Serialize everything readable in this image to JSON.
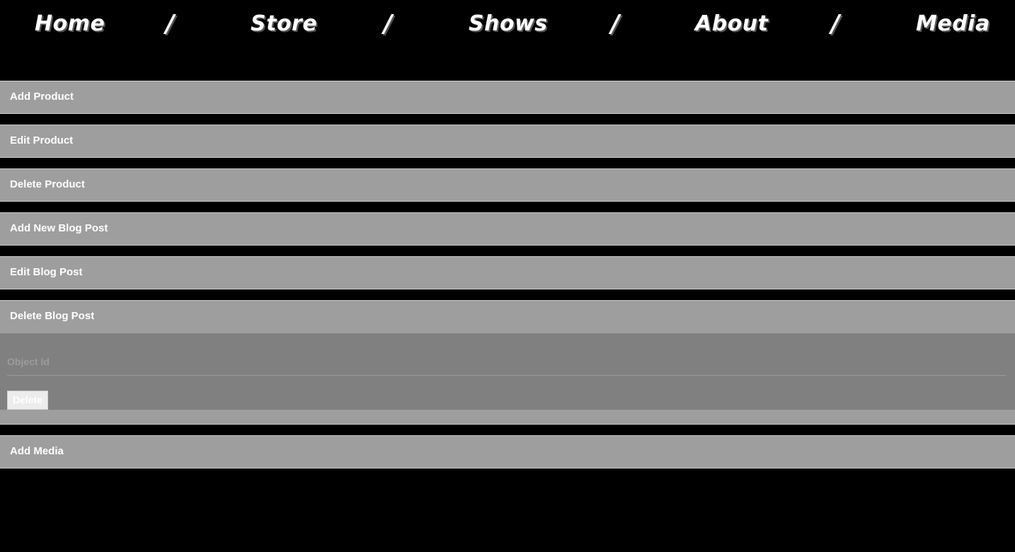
{
  "nav": {
    "links": [
      "Home",
      "Store",
      "Shows",
      "About",
      "Media"
    ],
    "separator": "/"
  },
  "panels": [
    {
      "label": "Add Product"
    },
    {
      "label": "Edit Product"
    },
    {
      "label": "Delete Product"
    },
    {
      "label": "Add New Blog Post"
    },
    {
      "label": "Edit Blog Post"
    },
    {
      "label": "Delete Blog Post"
    },
    {
      "label": "Add Media"
    }
  ],
  "delete_blog_form": {
    "object_id_placeholder": "Object Id",
    "object_id_value": "",
    "delete_label": "Delete"
  },
  "colors": {
    "page_background": "#000000",
    "panel_background": "#9e9e9e",
    "panel_body_background": "#808080",
    "text": "#ffffff"
  }
}
